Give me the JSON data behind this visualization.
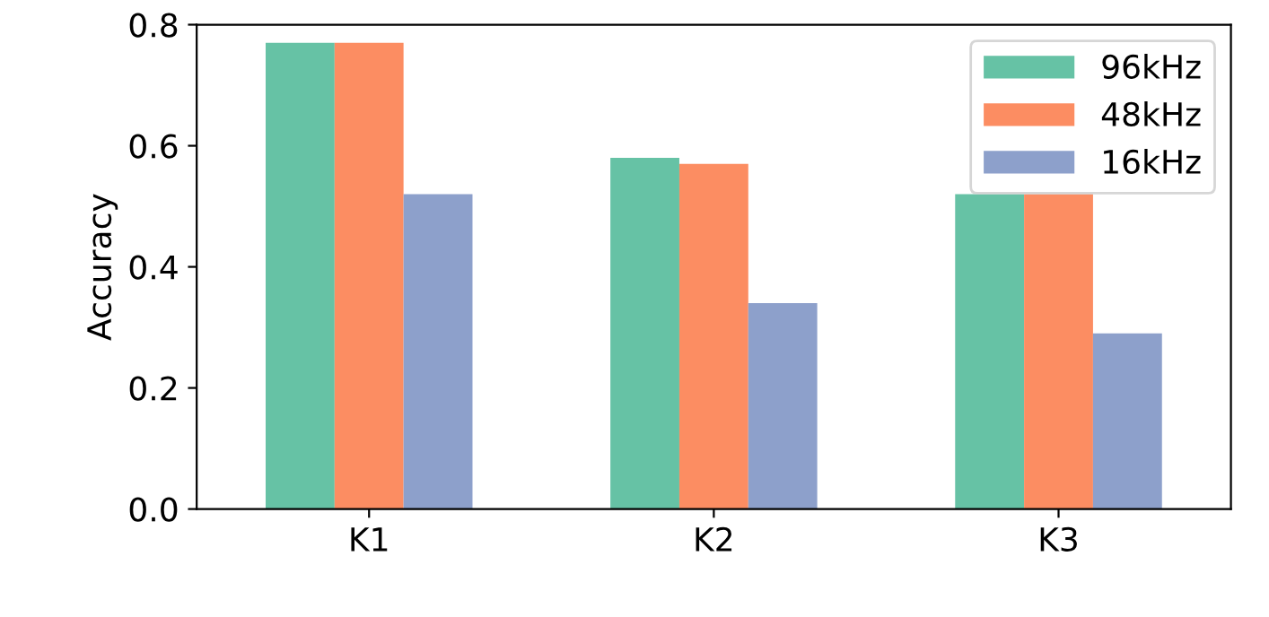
{
  "chart_data": {
    "type": "bar",
    "ylabel": "Accuracy",
    "categories": [
      "K1",
      "K2",
      "K3"
    ],
    "series": [
      {
        "name": "96kHz",
        "color": "#66c2a5",
        "values": [
          0.77,
          0.58,
          0.52
        ]
      },
      {
        "name": "48kHz",
        "color": "#fc8d62",
        "values": [
          0.77,
          0.57,
          0.52
        ]
      },
      {
        "name": "16kHz",
        "color": "#8da0cb",
        "values": [
          0.52,
          0.34,
          0.29
        ]
      }
    ],
    "ylim": [
      0,
      0.8
    ],
    "yticks": [
      {
        "value": 0,
        "label": "0.0"
      },
      0.2,
      0.4,
      0.6,
      0.8
    ],
    "grid": false,
    "legend": "top right"
  }
}
